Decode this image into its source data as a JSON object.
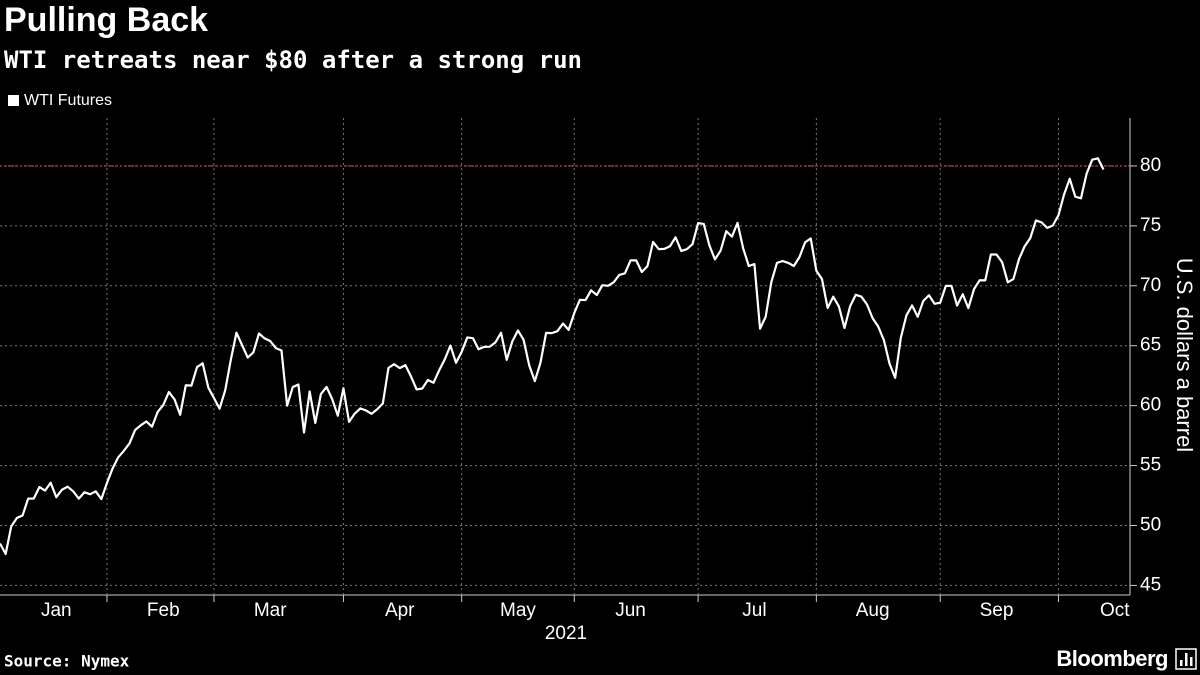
{
  "chart_data": {
    "type": "line",
    "title": "Pulling Back",
    "subtitle": "WTI retreats near $80 after a strong run",
    "y_axis_label": "U.S. dollars a barrel",
    "x_axis_label": "2021",
    "source": "Source: Nymex",
    "brand": "Bloomberg",
    "categories": [
      "Jan",
      "Feb",
      "Mar",
      "Apr",
      "May",
      "Jun",
      "Jul",
      "Aug",
      "Sep",
      "Oct"
    ],
    "series": [
      {
        "name": "WTI Futures",
        "color": "#ffffff",
        "values": [
          [
            48.5,
            47.62,
            49.93,
            50.63,
            50.83,
            52.24,
            52.25,
            53.21,
            52.91,
            53.57,
            52.36,
            52.98,
            53.24,
            52.85,
            52.24,
            52.77,
            52.61,
            52.85,
            52.2
          ],
          [
            53.55,
            54.76,
            55.69,
            56.23,
            56.85,
            57.97,
            58.36,
            58.68,
            58.24,
            59.47,
            60.05,
            61.14,
            60.52,
            59.24,
            61.7,
            61.67,
            63.22,
            63.53,
            61.5
          ],
          [
            60.64,
            59.75,
            61.28,
            63.83,
            66.09,
            65.05,
            64.01,
            64.44,
            66.02,
            65.61,
            65.39,
            64.8,
            64.6,
            60.0,
            61.55,
            61.76,
            57.76,
            61.18,
            58.56,
            60.97,
            61.56,
            60.55,
            59.16
          ],
          [
            61.45,
            58.65,
            59.33,
            59.77,
            59.6,
            59.32,
            59.7,
            60.18,
            63.15,
            63.46,
            63.13,
            63.38,
            62.44,
            61.35,
            61.43,
            62.14,
            61.91,
            62.94,
            63.86,
            65.01,
            63.58
          ],
          [
            64.49,
            65.69,
            65.63,
            64.71,
            64.9,
            64.92,
            65.28,
            66.08,
            63.82,
            65.37,
            66.27,
            65.49,
            63.36,
            62.05,
            63.58,
            66.07,
            66.05,
            66.21,
            66.85,
            66.32
          ],
          [
            67.72,
            68.83,
            68.81,
            69.62,
            69.23,
            70.05,
            70.0,
            70.29,
            70.91,
            71.04,
            72.12,
            72.12,
            71.15,
            71.64,
            73.66,
            73.06,
            73.08,
            73.3,
            74.05,
            72.91,
            73.05,
            73.47
          ],
          [
            75.23,
            75.16,
            73.37,
            72.2,
            72.94,
            74.56,
            74.1,
            75.25,
            73.13,
            71.65,
            71.81,
            66.42,
            67.42,
            70.3,
            71.91,
            72.07,
            71.91,
            71.65,
            72.39,
            73.62,
            73.95
          ],
          [
            71.26,
            70.56,
            68.15,
            69.09,
            68.28,
            66.48,
            68.29,
            69.25,
            69.09,
            68.44,
            67.29,
            66.59,
            65.46,
            63.5,
            62.32,
            65.64,
            67.54,
            68.36,
            67.42,
            68.74,
            69.21,
            68.5
          ],
          [
            68.59,
            70.0,
            69.99,
            68.35,
            69.3,
            68.14,
            69.72,
            70.46,
            70.45,
            72.61,
            72.61,
            71.97,
            70.29,
            70.56,
            72.23,
            73.3,
            73.98,
            75.45,
            75.29,
            74.83,
            75.03
          ],
          [
            75.88,
            77.62,
            78.93,
            77.43,
            77.3,
            79.35,
            80.52,
            80.64,
            79.7
          ]
        ]
      }
    ],
    "ylim": [
      44.2,
      84
    ],
    "yticks": [
      45,
      50,
      55,
      60,
      65,
      70,
      75,
      80
    ],
    "y_axis_side": "right",
    "grid": true,
    "reference_line": {
      "value": 80,
      "color": "#e0474c"
    },
    "legend": "top-left",
    "background": "#000000"
  }
}
